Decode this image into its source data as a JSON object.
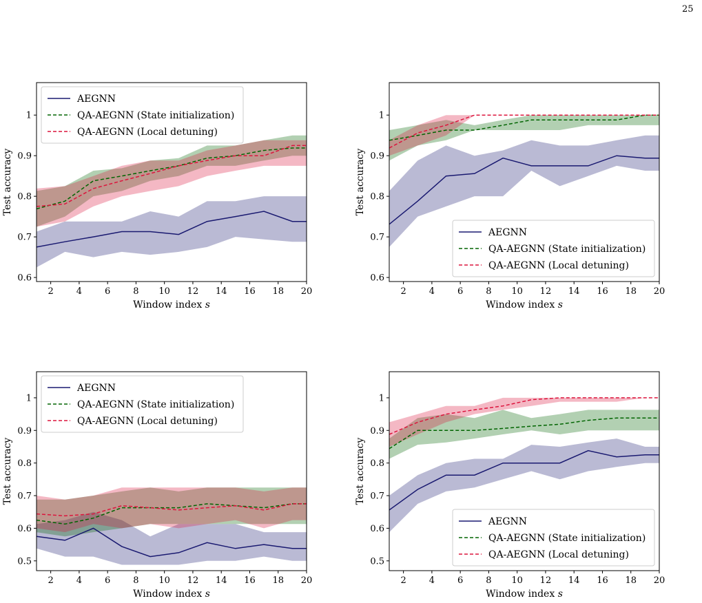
{
  "page": {
    "number": "25"
  },
  "chart_data": [
    {
      "type": "line",
      "xlabel": "Window index s",
      "ylabel": "Test accuracy",
      "xlim": [
        1,
        20
      ],
      "ylim": [
        0.59,
        1.08
      ],
      "xticks": [
        2,
        4,
        6,
        8,
        10,
        12,
        14,
        16,
        18,
        20
      ],
      "yticks": [
        0.6,
        0.7,
        0.8,
        0.9,
        1.0
      ],
      "legend_position": "top-left",
      "grid": false,
      "x": [
        1,
        3,
        5,
        7,
        9,
        11,
        13,
        15,
        17,
        19,
        20
      ],
      "series": [
        {
          "name": "AEGNN",
          "color": "#191970",
          "style": "solid",
          "values": [
            0.675,
            0.688,
            0.7,
            0.713,
            0.713,
            0.706,
            0.738,
            0.75,
            0.763,
            0.738,
            0.738
          ],
          "lower": [
            0.625,
            0.663,
            0.65,
            0.663,
            0.656,
            0.663,
            0.675,
            0.7,
            0.694,
            0.688,
            0.688
          ],
          "upper": [
            0.713,
            0.738,
            0.738,
            0.738,
            0.763,
            0.75,
            0.788,
            0.788,
            0.8,
            0.8,
            0.8
          ]
        },
        {
          "name": "QA-AEGNN (State initialization)",
          "color": "#006400",
          "style": "dashed",
          "values": [
            0.769,
            0.788,
            0.838,
            0.85,
            0.863,
            0.875,
            0.894,
            0.9,
            0.913,
            0.919,
            0.919
          ],
          "lower": [
            0.725,
            0.75,
            0.8,
            0.813,
            0.838,
            0.85,
            0.875,
            0.875,
            0.888,
            0.9,
            0.9
          ],
          "upper": [
            0.813,
            0.825,
            0.863,
            0.869,
            0.888,
            0.894,
            0.925,
            0.925,
            0.938,
            0.95,
            0.95
          ]
        },
        {
          "name": "QA-AEGNN (Local detuning)",
          "color": "#dc143c",
          "style": "dashed",
          "values": [
            0.775,
            0.781,
            0.819,
            0.838,
            0.856,
            0.875,
            0.888,
            0.9,
            0.9,
            0.925,
            0.925
          ],
          "lower": [
            0.725,
            0.738,
            0.775,
            0.8,
            0.813,
            0.825,
            0.85,
            0.863,
            0.875,
            0.875,
            0.875
          ],
          "upper": [
            0.819,
            0.825,
            0.85,
            0.875,
            0.888,
            0.888,
            0.913,
            0.925,
            0.938,
            0.938,
            0.938
          ]
        }
      ]
    },
    {
      "type": "line",
      "xlabel": "Window index s",
      "ylabel": "Test accuracy",
      "xlim": [
        1,
        20
      ],
      "ylim": [
        0.59,
        1.08
      ],
      "xticks": [
        2,
        4,
        6,
        8,
        10,
        12,
        14,
        16,
        18,
        20
      ],
      "yticks": [
        0.6,
        0.7,
        0.8,
        0.9,
        1.0
      ],
      "legend_position": "lower-right",
      "grid": false,
      "x": [
        1,
        3,
        5,
        7,
        9,
        11,
        13,
        15,
        17,
        19,
        20
      ],
      "series": [
        {
          "name": "AEGNN",
          "color": "#191970",
          "style": "solid",
          "values": [
            0.731,
            0.788,
            0.85,
            0.856,
            0.894,
            0.875,
            0.875,
            0.875,
            0.9,
            0.894,
            0.894
          ],
          "lower": [
            0.675,
            0.75,
            0.775,
            0.8,
            0.8,
            0.863,
            0.825,
            0.85,
            0.875,
            0.863,
            0.863
          ],
          "upper": [
            0.813,
            0.888,
            0.925,
            0.9,
            0.913,
            0.938,
            0.925,
            0.925,
            0.938,
            0.95,
            0.95
          ]
        },
        {
          "name": "QA-AEGNN (State initialization)",
          "color": "#006400",
          "style": "dashed",
          "values": [
            0.938,
            0.95,
            0.963,
            0.963,
            0.975,
            0.988,
            0.988,
            0.988,
            0.988,
            1.0,
            1.0
          ],
          "lower": [
            0.888,
            0.925,
            0.938,
            0.963,
            0.963,
            0.963,
            0.963,
            0.975,
            0.975,
            0.975,
            0.975
          ],
          "upper": [
            0.963,
            0.975,
            0.988,
            0.975,
            0.988,
            1.0,
            1.0,
            1.0,
            1.0,
            1.0,
            1.0
          ]
        },
        {
          "name": "QA-AEGNN (Local detuning)",
          "color": "#dc143c",
          "style": "dashed",
          "values": [
            0.919,
            0.956,
            0.975,
            1.0,
            1.0,
            1.0,
            1.0,
            1.0,
            1.0,
            1.0,
            1.0
          ],
          "lower": [
            0.9,
            0.925,
            0.95,
            1.0,
            1.0,
            1.0,
            1.0,
            1.0,
            1.0,
            1.0,
            1.0
          ],
          "upper": [
            0.938,
            0.975,
            1.0,
            1.0,
            1.0,
            1.0,
            1.0,
            1.0,
            1.0,
            1.0,
            1.0
          ]
        }
      ]
    },
    {
      "type": "line",
      "xlabel": "Window index s",
      "ylabel": "Test accuracy",
      "xlim": [
        1,
        20
      ],
      "ylim": [
        0.47,
        1.08
      ],
      "xticks": [
        2,
        4,
        6,
        8,
        10,
        12,
        14,
        16,
        18,
        20
      ],
      "yticks": [
        0.5,
        0.6,
        0.7,
        0.8,
        0.9,
        1.0
      ],
      "legend_position": "top-left",
      "grid": false,
      "x": [
        1,
        3,
        5,
        7,
        9,
        11,
        13,
        15,
        17,
        19,
        20
      ],
      "series": [
        {
          "name": "AEGNN",
          "color": "#191970",
          "style": "solid",
          "values": [
            0.575,
            0.563,
            0.6,
            0.544,
            0.513,
            0.525,
            0.556,
            0.538,
            0.55,
            0.538,
            0.538
          ],
          "lower": [
            0.538,
            0.513,
            0.513,
            0.488,
            0.488,
            0.488,
            0.5,
            0.5,
            0.513,
            0.5,
            0.5
          ],
          "upper": [
            0.613,
            0.625,
            0.65,
            0.625,
            0.575,
            0.613,
            0.613,
            0.613,
            0.588,
            0.588,
            0.588
          ]
        },
        {
          "name": "QA-AEGNN (State initialization)",
          "color": "#006400",
          "style": "dashed",
          "values": [
            0.625,
            0.613,
            0.631,
            0.663,
            0.663,
            0.663,
            0.675,
            0.669,
            0.663,
            0.675,
            0.675
          ],
          "lower": [
            0.588,
            0.575,
            0.588,
            0.6,
            0.613,
            0.613,
            0.613,
            0.613,
            0.613,
            0.613,
            0.613
          ],
          "upper": [
            0.688,
            0.688,
            0.7,
            0.713,
            0.725,
            0.713,
            0.725,
            0.725,
            0.725,
            0.725,
            0.725
          ]
        },
        {
          "name": "QA-AEGNN (Local detuning)",
          "color": "#dc143c",
          "style": "dashed",
          "values": [
            0.644,
            0.638,
            0.644,
            0.669,
            0.663,
            0.656,
            0.663,
            0.669,
            0.656,
            0.675,
            0.675
          ],
          "lower": [
            0.6,
            0.588,
            0.613,
            0.6,
            0.613,
            0.6,
            0.613,
            0.625,
            0.6,
            0.625,
            0.625
          ],
          "upper": [
            0.7,
            0.688,
            0.7,
            0.725,
            0.725,
            0.725,
            0.725,
            0.725,
            0.713,
            0.725,
            0.725
          ]
        }
      ]
    },
    {
      "type": "line",
      "xlabel": "Window index s",
      "ylabel": "Test accuracy",
      "xlim": [
        1,
        20
      ],
      "ylim": [
        0.47,
        1.08
      ],
      "xticks": [
        2,
        4,
        6,
        8,
        10,
        12,
        14,
        16,
        18,
        20
      ],
      "yticks": [
        0.5,
        0.6,
        0.7,
        0.8,
        0.9,
        1.0
      ],
      "legend_position": "lower-right",
      "grid": false,
      "x": [
        1,
        3,
        5,
        7,
        9,
        11,
        13,
        15,
        17,
        19,
        20
      ],
      "series": [
        {
          "name": "AEGNN",
          "color": "#191970",
          "style": "solid",
          "values": [
            0.656,
            0.719,
            0.763,
            0.763,
            0.8,
            0.8,
            0.8,
            0.838,
            0.819,
            0.825,
            0.825
          ],
          "lower": [
            0.588,
            0.675,
            0.713,
            0.725,
            0.75,
            0.775,
            0.75,
            0.775,
            0.788,
            0.8,
            0.8
          ],
          "upper": [
            0.7,
            0.763,
            0.8,
            0.813,
            0.813,
            0.856,
            0.85,
            0.863,
            0.875,
            0.85,
            0.85
          ]
        },
        {
          "name": "QA-AEGNN (State initialization)",
          "color": "#006400",
          "style": "dashed",
          "values": [
            0.844,
            0.9,
            0.9,
            0.9,
            0.906,
            0.913,
            0.919,
            0.931,
            0.938,
            0.938,
            0.938
          ],
          "lower": [
            0.813,
            0.856,
            0.863,
            0.875,
            0.888,
            0.9,
            0.888,
            0.9,
            0.9,
            0.9,
            0.9
          ],
          "upper": [
            0.875,
            0.938,
            0.95,
            0.938,
            0.963,
            0.938,
            0.95,
            0.963,
            0.963,
            0.963,
            0.963
          ]
        },
        {
          "name": "QA-AEGNN (Local detuning)",
          "color": "#dc143c",
          "style": "dashed",
          "values": [
            0.888,
            0.925,
            0.95,
            0.963,
            0.975,
            0.994,
            1.0,
            1.0,
            1.0,
            1.0,
            1.0
          ],
          "lower": [
            0.85,
            0.888,
            0.925,
            0.95,
            0.963,
            0.975,
            0.988,
            0.988,
            0.988,
            1.0,
            1.0
          ],
          "upper": [
            0.925,
            0.95,
            0.975,
            0.975,
            1.0,
            1.0,
            1.0,
            1.0,
            1.0,
            1.0,
            1.0
          ]
        }
      ]
    }
  ]
}
